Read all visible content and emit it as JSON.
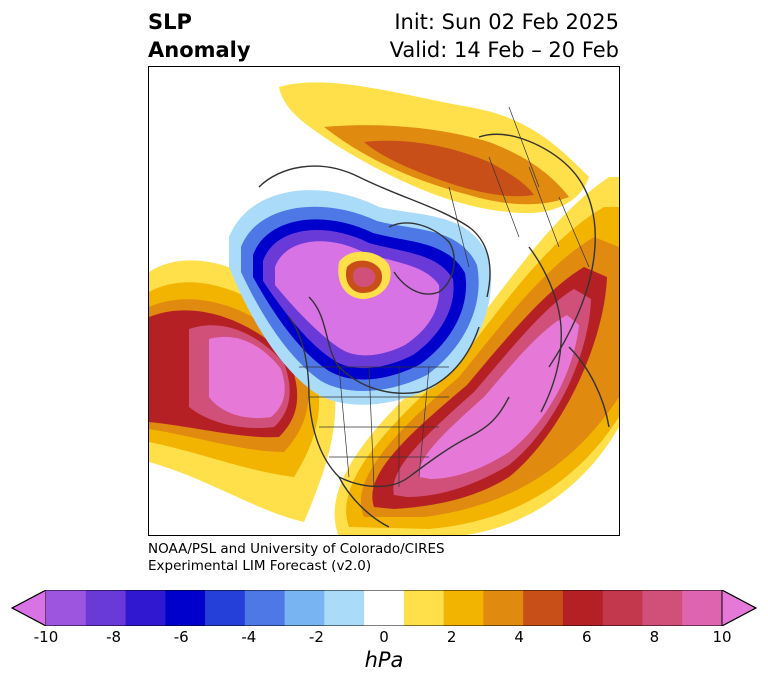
{
  "title": {
    "variable_line1": "SLP",
    "variable_line2": "Anomaly",
    "init": "Init: Sun 02 Feb 2025",
    "valid": "Valid: 14 Feb – 20 Feb"
  },
  "credit": {
    "line1": "NOAA/PSL and University of Colorado/CIRES",
    "line2": "Experimental LIM Forecast (v2.0)"
  },
  "colorbar": {
    "unit": "hPa",
    "ticks": [
      "-10",
      "-8",
      "-6",
      "-4",
      "-2",
      "0",
      "2",
      "4",
      "6",
      "8",
      "10"
    ],
    "under_color": "#d873e6",
    "over_color": "#e678d8",
    "colors": [
      "#d873e6",
      "#9d55e0",
      "#6a3ad9",
      "#3018d0",
      "#0000cc",
      "#2440d8",
      "#4d78e6",
      "#78b4f2",
      "#aadcfa",
      "#ffffff",
      "#ffe04a",
      "#f2b400",
      "#e08a10",
      "#c85018",
      "#b42024",
      "#c4384e",
      "#d0507a",
      "#de64b0",
      "#e678d8"
    ]
  }
}
